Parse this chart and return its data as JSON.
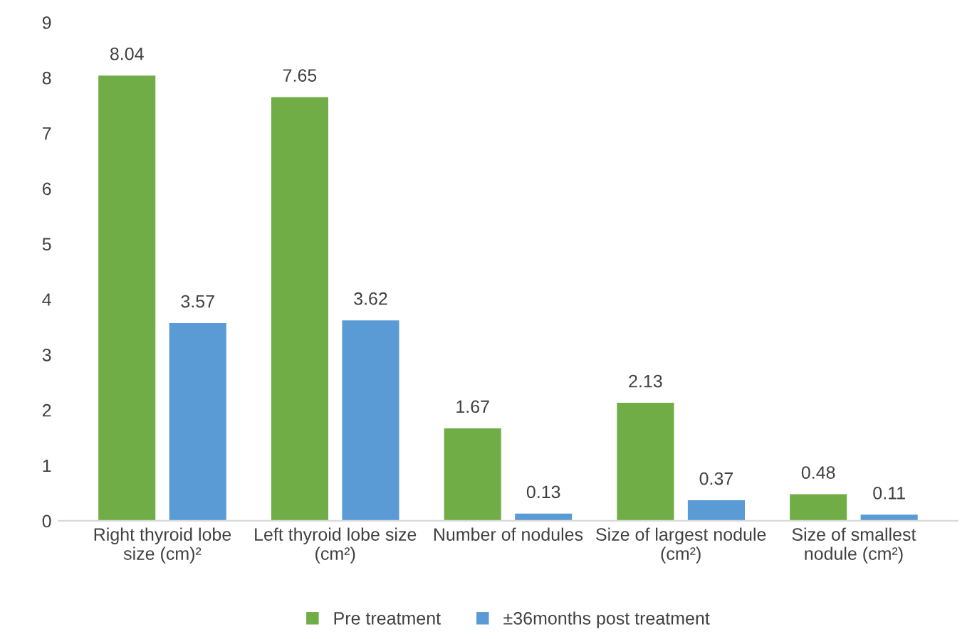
{
  "chart_data": {
    "type": "bar",
    "categories": [
      "Right thyroid lobe\nsize (cm)²",
      "Left thyroid lobe size\n(cm²)",
      "Number of nodules",
      "Size of largest nodule\n(cm²)",
      "Size of smallest\nnodule (cm²)"
    ],
    "series": [
      {
        "name": "Pre treatment",
        "color": "#70ad47",
        "values": [
          8.04,
          7.65,
          1.67,
          2.13,
          0.48
        ]
      },
      {
        "name": "±36months post treatment",
        "color": "#5b9bd5",
        "values": [
          3.57,
          3.62,
          0.13,
          0.37,
          0.11
        ]
      }
    ],
    "ylim": [
      0,
      9
    ],
    "yticks": [
      0,
      1,
      2,
      3,
      4,
      5,
      6,
      7,
      8,
      9
    ],
    "grid": false,
    "data_labels": true,
    "legend": "bottom"
  }
}
